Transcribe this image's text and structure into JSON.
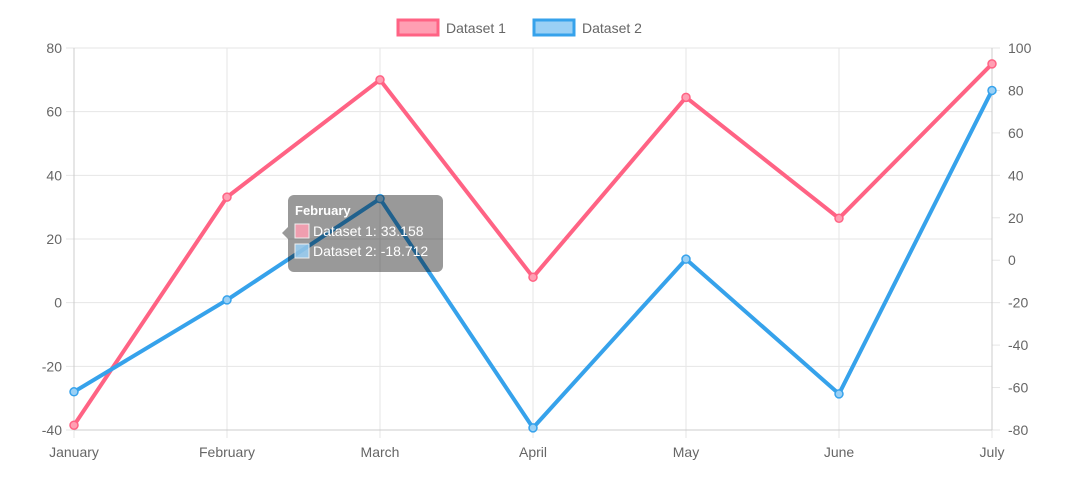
{
  "chart_data": {
    "type": "line",
    "categories": [
      "January",
      "February",
      "March",
      "April",
      "May",
      "June",
      "July"
    ],
    "series": [
      {
        "name": "Dataset 1",
        "axis": "left",
        "color": "#ff6384",
        "fill": "#ff9fb3",
        "values": [
          -38.5,
          33.158,
          70,
          8,
          64.5,
          26.5,
          75
        ]
      },
      {
        "name": "Dataset 2",
        "axis": "right",
        "color": "#36a2eb",
        "fill": "#9ad0f5",
        "values": [
          -62,
          -18.712,
          29,
          -79,
          0.5,
          -63,
          80
        ]
      }
    ],
    "y_left": {
      "min": -40,
      "max": 80,
      "ticks": [
        "80",
        "60",
        "40",
        "20",
        "0",
        "-20",
        "-40"
      ]
    },
    "y_right": {
      "min": -80,
      "max": 100,
      "ticks": [
        "100",
        "80",
        "60",
        "40",
        "20",
        "0",
        "-20",
        "-40",
        "-60",
        "-80"
      ]
    },
    "grid": true,
    "legend_position": "top",
    "tooltip": {
      "category_index": 1,
      "title": "February",
      "lines": [
        "Dataset 1: 33.158",
        "Dataset 2: -18.712"
      ]
    }
  }
}
